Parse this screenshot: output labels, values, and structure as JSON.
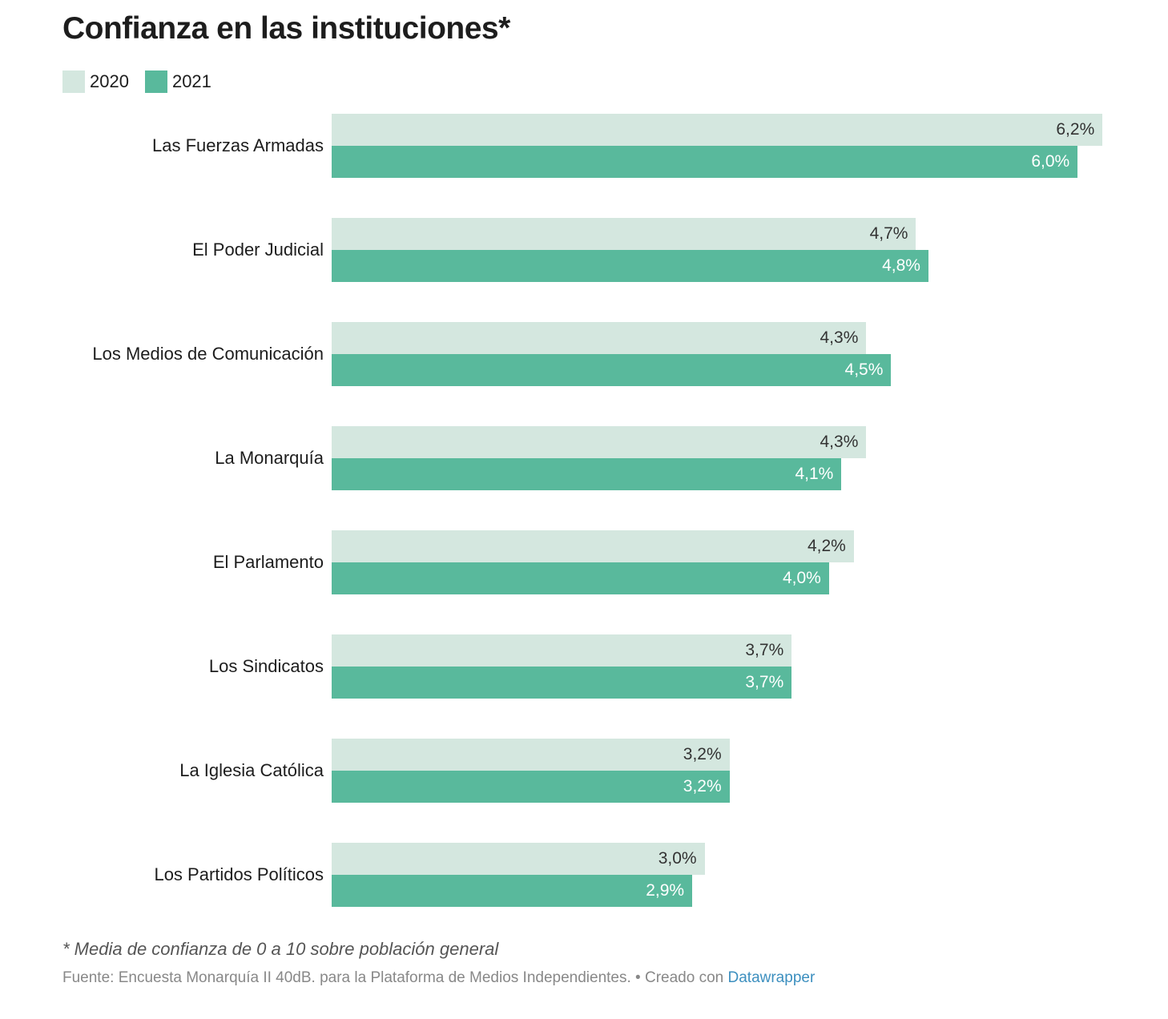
{
  "chart_data": {
    "type": "bar",
    "orientation": "horizontal",
    "title": "Confianza en las instituciones*",
    "categories": [
      "Las Fuerzas Armadas",
      "El Poder Judicial",
      "Los Medios de Comunicación",
      "La Monarquía",
      "El Parlamento",
      "Los Sindicatos",
      "La Iglesia Católica",
      "Los Partidos Políticos"
    ],
    "series": [
      {
        "name": "2020",
        "color": "#d4e7df",
        "label_color": "#333333",
        "values": [
          6.2,
          4.7,
          4.3,
          4.3,
          4.2,
          3.7,
          3.2,
          3.0
        ],
        "labels": [
          "6,2%",
          "4,7%",
          "4,3%",
          "4,3%",
          "4,2%",
          "3,7%",
          "3,2%",
          "3,0%"
        ]
      },
      {
        "name": "2021",
        "color": "#59b99c",
        "label_color": "#ffffff",
        "values": [
          6.0,
          4.8,
          4.5,
          4.1,
          4.0,
          3.7,
          3.2,
          2.9
        ],
        "labels": [
          "6,0%",
          "4,8%",
          "4,5%",
          "4,1%",
          "4,0%",
          "3,7%",
          "3,2%",
          "2,9%"
        ]
      }
    ],
    "legend_position": "top-left",
    "grid": false,
    "xlim": [
      0,
      6.2
    ]
  },
  "footer": {
    "note": "* Media de confianza de 0 a 10 sobre población general",
    "source": "Fuente: Encuesta Monarquía II 40dB. para la Plataforma de Medios Independientes. • Creado con ",
    "credit_link": "Datawrapper"
  }
}
